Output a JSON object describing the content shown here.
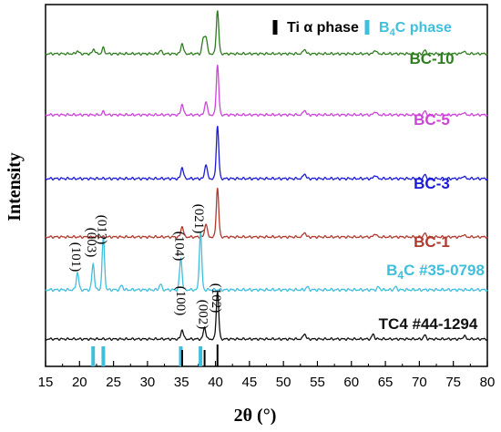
{
  "chart_data": {
    "type": "line",
    "xlabel": "2θ (°)",
    "ylabel": "Intensity",
    "xlim": [
      15,
      80
    ],
    "x_ticks": [
      "15",
      "20",
      "25",
      "30",
      "35",
      "40",
      "45",
      "50",
      "55",
      "60",
      "65",
      "70",
      "75",
      "80"
    ],
    "legend": {
      "placement": "top-right",
      "entries": [
        {
          "label": "Ti α phase",
          "color": "#000000"
        },
        {
          "label": "B4C phase",
          "color": "#3fbfdc"
        }
      ]
    },
    "series": [
      {
        "name": "BC-10",
        "color": "#2e7d1f",
        "base": 0.85,
        "scale": 0.13,
        "peaks": [
          [
            19.7,
            0.06
          ],
          [
            22.1,
            0.1
          ],
          [
            23.5,
            0.12
          ],
          [
            31.9,
            0.07
          ],
          [
            35.1,
            0.22
          ],
          [
            38.2,
            0.3
          ],
          [
            38.6,
            0.35
          ],
          [
            40.3,
            0.9
          ],
          [
            53.1,
            0.1
          ],
          [
            63.5,
            0.08
          ],
          [
            70.8,
            0.07
          ],
          [
            76.5,
            0.06
          ]
        ]
      },
      {
        "name": "BC-5",
        "color": "#cc44d9",
        "base": 0.8,
        "scale": 0.13,
        "peaks": [
          [
            23.5,
            0.06
          ],
          [
            35.1,
            0.22
          ],
          [
            38.6,
            0.28
          ],
          [
            40.3,
            1.0
          ],
          [
            53.1,
            0.1
          ],
          [
            63.5,
            0.07
          ],
          [
            70.8,
            0.07
          ],
          [
            76.5,
            0.05
          ]
        ]
      },
      {
        "name": "BC-3",
        "color": "#1a1ad6",
        "base": 0.8,
        "scale": 0.13,
        "peaks": [
          [
            35.1,
            0.22
          ],
          [
            38.6,
            0.28
          ],
          [
            40.3,
            1.0
          ],
          [
            53.1,
            0.1
          ],
          [
            63.5,
            0.07
          ],
          [
            70.8,
            0.07
          ],
          [
            76.5,
            0.05
          ]
        ]
      },
      {
        "name": "BC-1",
        "color": "#b03a2e",
        "base": 0.8,
        "scale": 0.13,
        "peaks": [
          [
            35.1,
            0.22
          ],
          [
            38.6,
            0.28
          ],
          [
            40.3,
            1.0
          ],
          [
            53.1,
            0.1
          ],
          [
            63.5,
            0.07
          ],
          [
            70.8,
            0.07
          ],
          [
            76.5,
            0.05
          ]
        ]
      },
      {
        "name": "B4C #35-0798",
        "color": "#3fbfdc",
        "base": 0.8,
        "scale": 0.13,
        "peaks": [
          [
            19.7,
            0.3
          ],
          [
            22.0,
            0.45
          ],
          [
            23.5,
            0.9
          ],
          [
            26.2,
            0.08
          ],
          [
            31.9,
            0.1
          ],
          [
            34.9,
            0.55
          ],
          [
            37.8,
            1.0
          ],
          [
            53.5,
            0.05
          ],
          [
            64.0,
            0.05
          ],
          [
            66.5,
            0.05
          ]
        ]
      },
      {
        "name": "TC4 #44-1294",
        "color": "#111111",
        "base": 0.8,
        "scale": 0.15,
        "peaks": [
          [
            35.1,
            0.2
          ],
          [
            38.4,
            0.25
          ],
          [
            40.3,
            1.0
          ],
          [
            53.1,
            0.12
          ],
          [
            63.2,
            0.1
          ],
          [
            70.8,
            0.08
          ],
          [
            76.6,
            0.07
          ]
        ]
      }
    ],
    "series_labels": [
      "BC-10",
      "BC-5",
      "BC-3",
      "BC-1",
      "B4C #35-0798",
      "TC4 #44-1294"
    ],
    "peak_labels": {
      "b4c": [
        "(101)",
        "(003)",
        "(012)",
        "(104)",
        "(021)"
      ],
      "ti": [
        "(100)",
        "(002)",
        "(102)"
      ]
    },
    "reference_sticks": {
      "ti": [
        35.1,
        38.4,
        40.3
      ],
      "b4c": [
        22.0,
        23.5,
        34.9,
        37.8
      ]
    }
  }
}
